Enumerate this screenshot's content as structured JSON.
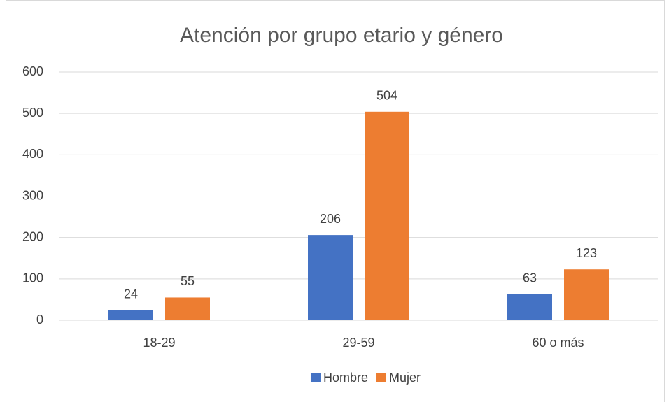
{
  "chart_data": {
    "type": "bar",
    "title": "Atención por grupo etario y género",
    "categories": [
      "18-29",
      "29-59",
      "60 o más"
    ],
    "series": [
      {
        "name": "Hombre",
        "color": "#4472c4",
        "values": [
          24,
          206,
          63
        ]
      },
      {
        "name": "Mujer",
        "color": "#ed7d31",
        "values": [
          55,
          504,
          123
        ]
      }
    ],
    "ylim": [
      0,
      600
    ],
    "yticks": [
      0,
      100,
      200,
      300,
      400,
      500,
      600
    ],
    "grid": true,
    "legend": "bottom"
  }
}
